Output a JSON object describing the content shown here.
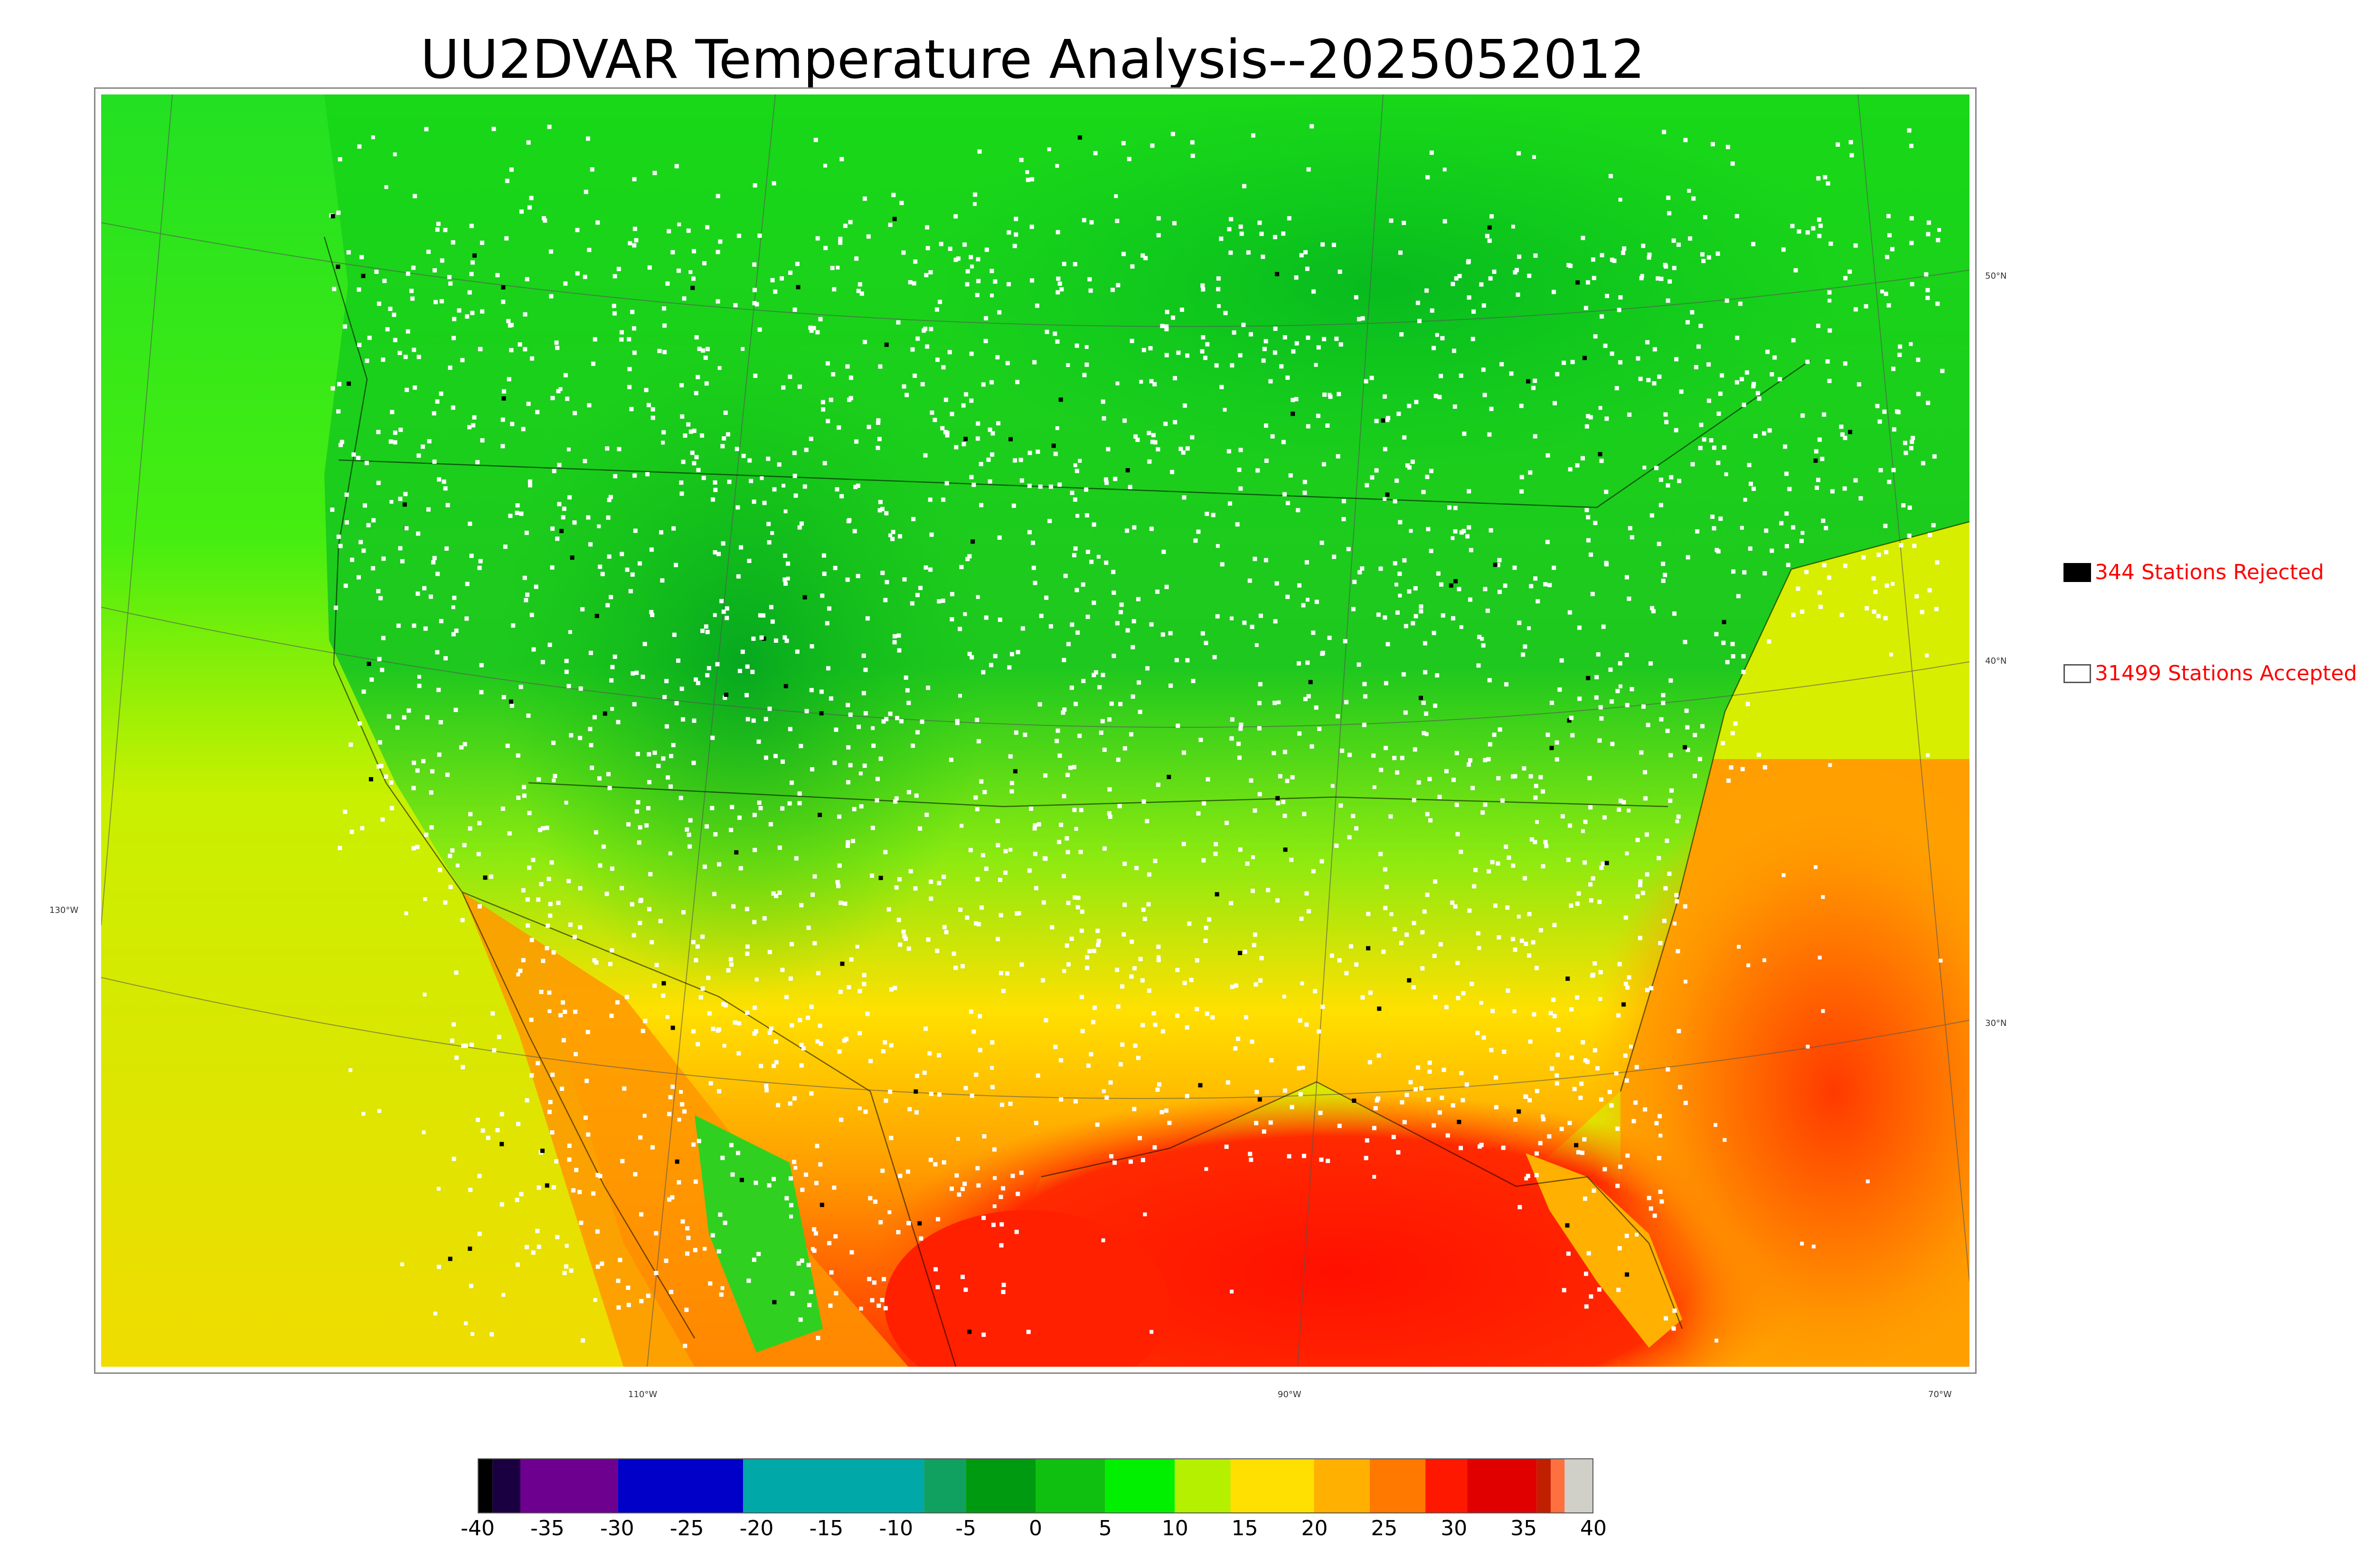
{
  "title": "UU2DVAR Temperature Analysis--2025052012",
  "legend": {
    "rejected": {
      "label": "344 Stations Rejected",
      "swatch_color": "#000000",
      "count": 344
    },
    "accepted": {
      "label": "31499 Stations Accepted",
      "swatch_color": "#ffffff",
      "count": 31499
    }
  },
  "lat_labels": [
    "50°N",
    "40°N",
    "30°N"
  ],
  "lon_labels": [
    "130°W",
    "110°W",
    "90°W",
    "70°W"
  ],
  "colorbar": {
    "ticks": [
      "-40",
      "-35",
      "-30",
      "-25",
      "-20",
      "-15",
      "-10",
      "-5",
      "0",
      "5",
      "10",
      "15",
      "20",
      "25",
      "30",
      "35",
      "40"
    ],
    "range": [
      -40,
      40
    ]
  },
  "colors": {
    "cold_green": "#00c000",
    "mid_green": "#20e020",
    "yellow_green": "#c8f000",
    "yellow": "#ffe600",
    "orange": "#ff9a00",
    "red": "#ff1f00",
    "station_accepted": "#ffffff",
    "station_rejected": "#000000"
  }
}
